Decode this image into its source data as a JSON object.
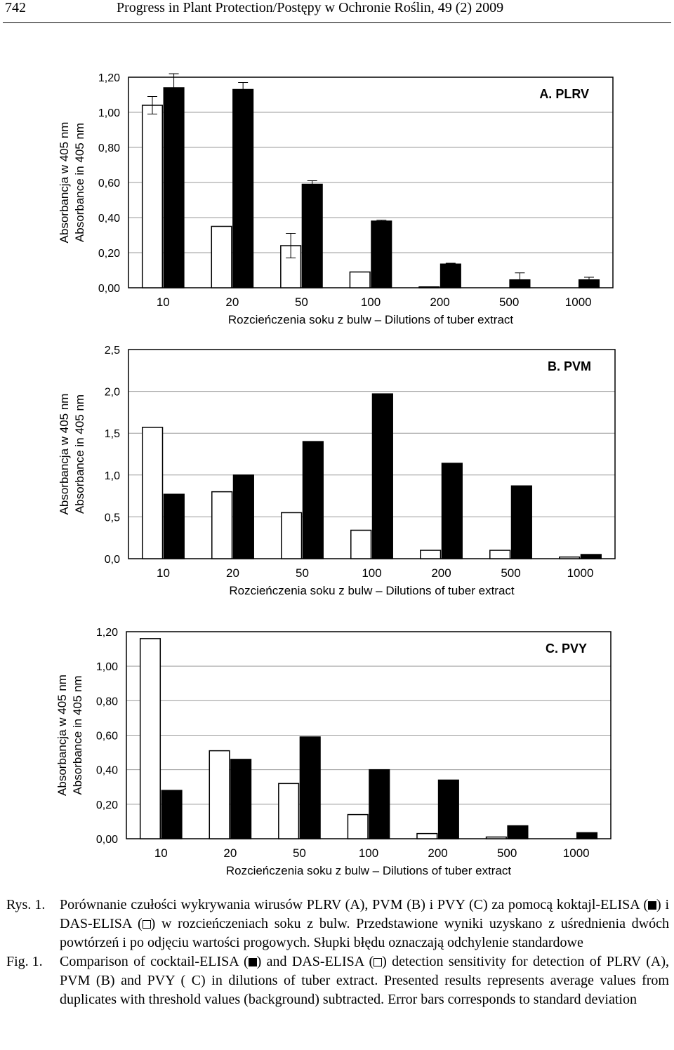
{
  "header": {
    "page_number": "742",
    "running_head": "Progress in Plant Protection/Postępy w Ochronie Roślin, 49 (2) 2009"
  },
  "colors": {
    "cocktail_elisa": "#000000",
    "das_elisa": "#ffffff"
  },
  "chart_data": [
    {
      "type": "bar",
      "title": "A. PLRV",
      "ylabel_lines": [
        "Absorbancja w 405 nm",
        "Absorbance in 405 nm"
      ],
      "xlabel": "Rozcieńczenia soku z bulw – Dilutions of tuber extract",
      "categories": [
        "10",
        "20",
        "50",
        "100",
        "200",
        "500",
        "1000"
      ],
      "ylim": [
        0,
        1.2
      ],
      "yticks": [
        "0,00",
        "0,20",
        "0,40",
        "0,60",
        "0,80",
        "1,00",
        "1,20"
      ],
      "error_bars": true,
      "series": [
        {
          "fill": "white",
          "values": [
            1.04,
            0.35,
            0.24,
            0.09,
            0.005,
            0,
            0
          ],
          "errors": [
            0.05,
            0,
            0.07,
            0,
            0,
            0,
            0
          ]
        },
        {
          "fill": "black",
          "values": [
            1.14,
            1.13,
            0.59,
            0.38,
            0.135,
            0.045,
            0.045
          ],
          "errors": [
            0.08,
            0.04,
            0.02,
            0.005,
            0.005,
            0.04,
            0.015
          ]
        }
      ]
    },
    {
      "type": "bar",
      "title": "B. PVM",
      "ylabel_lines": [
        "Absorbancja w 405 nm",
        "Absorbance in 405 nm"
      ],
      "xlabel": "Rozcieńczenia soku z bulw – Dilutions of tuber extract",
      "categories": [
        "10",
        "20",
        "50",
        "100",
        "200",
        "500",
        "1000"
      ],
      "ylim": [
        0,
        2.5
      ],
      "yticks": [
        "0,0",
        "0,5",
        "1,0",
        "1,5",
        "2,0",
        "2,5"
      ],
      "error_bars": false,
      "series": [
        {
          "fill": "white",
          "values": [
            1.57,
            0.8,
            0.55,
            0.34,
            0.1,
            0.1,
            0.02
          ]
        },
        {
          "fill": "black",
          "values": [
            0.77,
            1.0,
            1.4,
            1.97,
            1.14,
            0.87,
            0.05
          ]
        }
      ]
    },
    {
      "type": "bar",
      "title": "C. PVY",
      "ylabel_lines": [
        "Absorbancja w 405 nm",
        "Absorbance in 405 nm"
      ],
      "xlabel": "Rozcieńczenia soku z bulw – Dilutions of tuber extract",
      "categories": [
        "10",
        "20",
        "50",
        "100",
        "200",
        "500",
        "1000"
      ],
      "ylim": [
        0,
        1.2
      ],
      "yticks": [
        "0,00",
        "0,20",
        "0,40",
        "0,60",
        "0,80",
        "1,00",
        "1,20"
      ],
      "error_bars": false,
      "series": [
        {
          "fill": "white",
          "values": [
            1.16,
            0.51,
            0.32,
            0.14,
            0.03,
            0.01,
            0
          ]
        },
        {
          "fill": "black",
          "values": [
            0.28,
            0.46,
            0.59,
            0.4,
            0.34,
            0.075,
            0.035
          ]
        }
      ]
    }
  ],
  "caption": {
    "pl": {
      "label": "Rys. 1.",
      "text_1": "Porównanie czułości wykrywania wirusów PLRV (A), PVM (B) i PVY (C) za pomocą koktajl-ELISA (",
      "text_2": ") i DAS-ELISA (",
      "text_3": ") w rozcieńczeniach soku z bulw. Przedstawione wyniki uzyskano z uśrednienia dwóch powtórzeń i po odjęciu wartości progowych. Słupki błędu oznaczają odchylenie standardowe"
    },
    "en": {
      "label": "Fig. 1.",
      "text_1": "Comparison of cocktail-ELISA (",
      "text_2": ") and DAS-ELISA (",
      "text_3": ") detection sensitivity for detection of PLRV (A), PVM (B) and PVY ( C) in dilutions of tuber extract. Presented results represents average values from duplicates with threshold values (background) subtracted. Error bars corresponds to standard deviation"
    }
  }
}
